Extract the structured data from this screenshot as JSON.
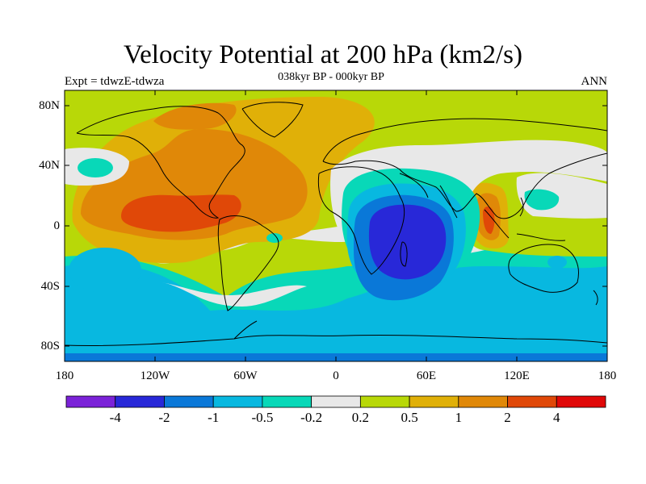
{
  "title": "Velocity Potential at 200 hPa (km2/s)",
  "left_label": "Expt = tdwzE-tdwza",
  "center_label": "038kyr BP - 000kyr BP",
  "right_label": "ANN",
  "map": {
    "projection": "cylindrical equidistant",
    "lon_range": [
      -180,
      180
    ],
    "lat_range": [
      -90,
      90
    ],
    "coastlines": true
  },
  "axes": {
    "lat_ticks": [
      "80N",
      "40N",
      "0",
      "40S",
      "80S"
    ],
    "lon_ticks": [
      "180",
      "120W",
      "60W",
      "0",
      "60E",
      "120E",
      "180"
    ]
  },
  "colorbar": {
    "colors": [
      "#7b22d8",
      "#2828d8",
      "#0a78d8",
      "#08b8e0",
      "#08d8b8",
      "#e8e8e8",
      "#b8d808",
      "#e0b008",
      "#e08808",
      "#e04808",
      "#e00808"
    ],
    "labels": [
      "-4",
      "-2",
      "-1",
      "-0.5",
      "-0.2",
      "0.2",
      "0.5",
      "1",
      "2",
      "4"
    ]
  },
  "legend_colors": {
    "ocean_background": "#b8d808",
    "positive_center": "#e04808",
    "negative_center": "#2828d8"
  }
}
